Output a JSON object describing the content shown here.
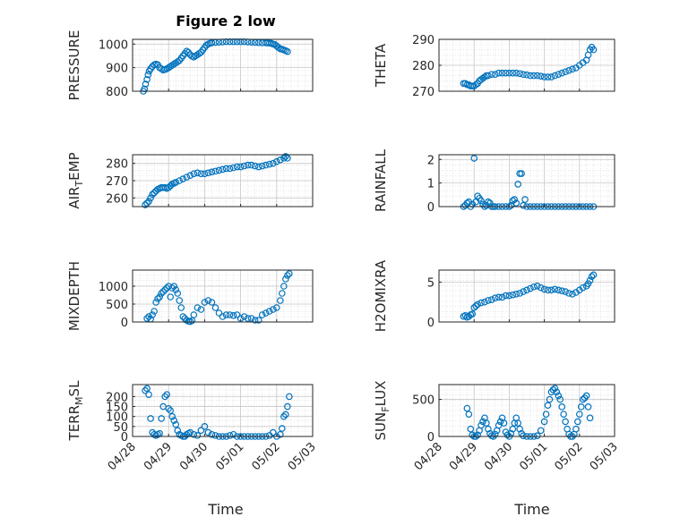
{
  "figure": {
    "title": "Figure 2 low",
    "xlabel": "Time",
    "xticks": [
      "04/28",
      "04/29",
      "04/30",
      "05/01",
      "05/02",
      "05/03"
    ],
    "marker_color": "#0072BD"
  },
  "chart_data": [
    {
      "type": "scatter",
      "name": "pressure",
      "ylabel": "PRESSURE",
      "ylim": [
        800,
        1020
      ],
      "yticks": [
        800,
        900,
        1000
      ],
      "ytick_labels": [
        "800",
        "900",
        "1000"
      ],
      "xlim": [
        0,
        5
      ],
      "grid": true,
      "x": [
        0.3,
        0.33,
        0.36,
        0.4,
        0.43,
        0.46,
        0.5,
        0.55,
        0.6,
        0.65,
        0.7,
        0.75,
        0.8,
        0.85,
        0.9,
        0.95,
        1.0,
        1.05,
        1.1,
        1.15,
        1.2,
        1.25,
        1.3,
        1.35,
        1.4,
        1.45,
        1.5,
        1.55,
        1.6,
        1.65,
        1.7,
        1.75,
        1.8,
        1.85,
        1.9,
        1.95,
        2.0,
        2.05,
        2.1,
        2.15,
        2.2,
        2.3,
        2.4,
        2.5,
        2.6,
        2.7,
        2.8,
        2.9,
        3.0,
        3.1,
        3.2,
        3.3,
        3.4,
        3.5,
        3.6,
        3.7,
        3.75,
        3.8,
        3.85,
        3.9,
        3.95,
        4.0,
        4.05,
        4.1,
        4.15,
        4.2,
        4.25,
        4.3
      ],
      "y": [
        800,
        810,
        830,
        850,
        870,
        885,
        895,
        905,
        912,
        915,
        912,
        900,
        895,
        890,
        892,
        895,
        900,
        905,
        910,
        915,
        920,
        925,
        930,
        940,
        950,
        960,
        970,
        965,
        955,
        948,
        945,
        950,
        955,
        960,
        965,
        975,
        985,
        995,
        1000,
        1003,
        1005,
        1007,
        1008,
        1009,
        1010,
        1010,
        1010,
        1010,
        1010,
        1010,
        1009,
        1008,
        1007,
        1006,
        1005,
        1005,
        1005,
        1004,
        1003,
        1000,
        998,
        992,
        985,
        980,
        978,
        975,
        972,
        968
      ]
    },
    {
      "type": "scatter",
      "name": "theta",
      "ylabel": "THETA",
      "ylim": [
        270,
        290
      ],
      "yticks": [
        270,
        280,
        290
      ],
      "ytick_labels": [
        "270",
        "280",
        "290"
      ],
      "xlim": [
        0,
        5
      ],
      "grid": true,
      "x": [
        0.7,
        0.75,
        0.8,
        0.85,
        0.9,
        0.95,
        1.0,
        1.05,
        1.1,
        1.15,
        1.2,
        1.25,
        1.3,
        1.35,
        1.4,
        1.5,
        1.6,
        1.7,
        1.8,
        1.9,
        2.0,
        2.1,
        2.2,
        2.3,
        2.4,
        2.5,
        2.6,
        2.7,
        2.8,
        2.9,
        3.0,
        3.1,
        3.2,
        3.3,
        3.4,
        3.5,
        3.6,
        3.7,
        3.8,
        3.9,
        4.0,
        4.1,
        4.2,
        4.25,
        4.3,
        4.35,
        4.4
      ],
      "y": [
        273,
        273,
        272.5,
        272.5,
        272,
        272,
        272,
        272.5,
        273,
        274,
        274.5,
        275,
        275.5,
        276,
        276,
        276.5,
        276.5,
        277,
        277,
        277,
        277,
        277,
        277,
        276.8,
        276.5,
        276.3,
        276,
        276,
        276,
        275.8,
        275.5,
        275.5,
        275.5,
        276,
        276.5,
        277,
        277.5,
        278,
        278.5,
        279,
        280,
        281,
        282,
        284,
        286,
        287,
        286
      ]
    },
    {
      "type": "scatter",
      "name": "air-temp",
      "ylabel_main": "AIR",
      "ylabel_sub": "T",
      "ylabel_rest": "EMP",
      "ylim": [
        255,
        285
      ],
      "yticks": [
        260,
        270,
        280
      ],
      "ytick_labels": [
        "260",
        "270",
        "280"
      ],
      "xlim": [
        0,
        5
      ],
      "grid": true,
      "x": [
        0.35,
        0.4,
        0.45,
        0.5,
        0.55,
        0.6,
        0.65,
        0.7,
        0.75,
        0.8,
        0.85,
        0.9,
        0.95,
        1.0,
        1.05,
        1.1,
        1.15,
        1.2,
        1.3,
        1.4,
        1.5,
        1.6,
        1.7,
        1.8,
        1.9,
        2.0,
        2.1,
        2.2,
        2.3,
        2.4,
        2.5,
        2.6,
        2.7,
        2.8,
        2.9,
        3.0,
        3.1,
        3.2,
        3.3,
        3.4,
        3.5,
        3.6,
        3.7,
        3.8,
        3.9,
        4.0,
        4.1,
        4.2,
        4.25,
        4.3
      ],
      "y": [
        256,
        257,
        258,
        260,
        262,
        263,
        264,
        265,
        265.5,
        266,
        266,
        266,
        265.5,
        266,
        267,
        268,
        268.5,
        269,
        270,
        271,
        272,
        273,
        274,
        274.5,
        274,
        274,
        274.5,
        275,
        275.5,
        276,
        276.5,
        277,
        277,
        277.5,
        278,
        278,
        278.5,
        279,
        279,
        278.5,
        278,
        278.5,
        279,
        279.5,
        280,
        281,
        282,
        283,
        284,
        283
      ]
    },
    {
      "type": "scatter",
      "name": "rainfall",
      "ylabel": "RAINFALL",
      "ylim": [
        0,
        2.2
      ],
      "yticks": [
        0,
        1,
        2
      ],
      "ytick_labels": [
        "0",
        "1",
        "2"
      ],
      "xlim": [
        0,
        5
      ],
      "grid": true,
      "x": [
        0.7,
        0.75,
        0.8,
        0.85,
        0.9,
        0.95,
        1.0,
        1.05,
        1.1,
        1.15,
        1.2,
        1.25,
        1.3,
        1.35,
        1.4,
        1.45,
        1.5,
        1.55,
        1.6,
        1.7,
        1.8,
        1.9,
        2.0,
        2.05,
        2.1,
        2.15,
        2.2,
        2.25,
        2.3,
        2.35,
        2.4,
        2.45,
        2.5,
        2.6,
        2.7,
        2.8,
        2.9,
        3.0,
        3.1,
        3.2,
        3.3,
        3.4,
        3.5,
        3.6,
        3.7,
        3.8,
        3.9,
        4.0,
        4.1,
        4.2,
        4.3,
        4.4
      ],
      "y": [
        0,
        0.05,
        0.15,
        0.2,
        0,
        0.1,
        2.05,
        0.2,
        0.45,
        0.35,
        0.25,
        0.1,
        0,
        0.05,
        0.2,
        0.15,
        0,
        0,
        0,
        0,
        0,
        0,
        0,
        0.05,
        0.25,
        0.3,
        0.15,
        0.95,
        1.4,
        1.4,
        0.05,
        0.3,
        0,
        0,
        0,
        0,
        0,
        0,
        0,
        0,
        0,
        0,
        0,
        0,
        0,
        0,
        0,
        0,
        0,
        0,
        0,
        0
      ]
    },
    {
      "type": "scatter",
      "name": "mixdepth",
      "ylabel": "MIXDEPTH",
      "ylim": [
        0,
        1450
      ],
      "yticks": [
        0,
        500,
        1000
      ],
      "ytick_labels": [
        "0",
        "500",
        "1000"
      ],
      "xlim": [
        0,
        5
      ],
      "grid": true,
      "x": [
        0.4,
        0.45,
        0.5,
        0.55,
        0.6,
        0.65,
        0.7,
        0.75,
        0.8,
        0.85,
        0.9,
        0.95,
        1.0,
        1.05,
        1.1,
        1.15,
        1.2,
        1.25,
        1.3,
        1.35,
        1.4,
        1.45,
        1.5,
        1.55,
        1.6,
        1.65,
        1.7,
        1.8,
        1.9,
        2.0,
        2.1,
        2.2,
        2.3,
        2.4,
        2.5,
        2.6,
        2.7,
        2.8,
        2.9,
        3.0,
        3.1,
        3.2,
        3.3,
        3.4,
        3.5,
        3.6,
        3.7,
        3.8,
        3.9,
        4.0,
        4.1,
        4.15,
        4.2,
        4.25,
        4.3,
        4.35
      ],
      "y": [
        100,
        150,
        80,
        200,
        300,
        550,
        650,
        700,
        800,
        850,
        900,
        950,
        1000,
        700,
        950,
        1000,
        900,
        800,
        600,
        400,
        150,
        100,
        50,
        20,
        10,
        40,
        200,
        400,
        350,
        550,
        600,
        550,
        400,
        250,
        150,
        200,
        200,
        180,
        200,
        100,
        150,
        100,
        100,
        50,
        50,
        200,
        250,
        300,
        350,
        400,
        600,
        800,
        1000,
        1200,
        1300,
        1350
      ]
    },
    {
      "type": "scatter",
      "name": "h2o-mixing-ratio",
      "ylabel": "H2OMIXRA",
      "ylim": [
        0,
        6.5
      ],
      "yticks": [
        0,
        5
      ],
      "ytick_labels": [
        "0",
        "5"
      ],
      "xlim": [
        0,
        5
      ],
      "grid": true,
      "x": [
        0.7,
        0.75,
        0.8,
        0.85,
        0.9,
        0.95,
        1.0,
        1.05,
        1.1,
        1.2,
        1.3,
        1.4,
        1.5,
        1.6,
        1.7,
        1.8,
        1.9,
        2.0,
        2.1,
        2.2,
        2.3,
        2.4,
        2.5,
        2.6,
        2.7,
        2.8,
        2.9,
        3.0,
        3.1,
        3.2,
        3.3,
        3.4,
        3.5,
        3.6,
        3.7,
        3.8,
        3.9,
        4.0,
        4.1,
        4.2,
        4.25,
        4.3,
        4.35,
        4.4
      ],
      "y": [
        0.7,
        0.8,
        0.6,
        0.7,
        0.9,
        1.0,
        1.8,
        2.0,
        2.2,
        2.4,
        2.5,
        2.7,
        2.8,
        3.0,
        3.1,
        3.1,
        3.3,
        3.3,
        3.4,
        3.5,
        3.6,
        3.8,
        4.0,
        4.2,
        4.4,
        4.5,
        4.3,
        4.1,
        4.0,
        4.0,
        4.1,
        4.0,
        3.9,
        3.8,
        3.6,
        3.5,
        3.7,
        4.0,
        4.3,
        4.5,
        4.8,
        5.2,
        5.7,
        5.9
      ]
    },
    {
      "type": "scatter",
      "name": "terrain-msl",
      "ylabel_main": "TERR",
      "ylabel_sub": "M",
      "ylabel_rest": "SL",
      "ylim": [
        0,
        260
      ],
      "yticks": [
        0,
        50,
        100,
        150,
        200
      ],
      "ytick_labels": [
        "0",
        "50",
        "100",
        "150",
        "200"
      ],
      "xlim": [
        0,
        5
      ],
      "grid": true,
      "x": [
        0.35,
        0.4,
        0.45,
        0.5,
        0.55,
        0.6,
        0.65,
        0.7,
        0.75,
        0.8,
        0.85,
        0.9,
        0.95,
        1.0,
        1.05,
        1.1,
        1.15,
        1.2,
        1.25,
        1.3,
        1.35,
        1.4,
        1.45,
        1.5,
        1.55,
        1.6,
        1.7,
        1.8,
        1.9,
        2.0,
        2.1,
        2.2,
        2.3,
        2.4,
        2.5,
        2.6,
        2.7,
        2.8,
        2.9,
        3.0,
        3.1,
        3.2,
        3.3,
        3.4,
        3.5,
        3.6,
        3.7,
        3.8,
        3.9,
        4.0,
        4.1,
        4.15,
        4.2,
        4.25,
        4.3,
        4.35
      ],
      "y": [
        230,
        240,
        210,
        90,
        20,
        10,
        5,
        10,
        15,
        90,
        150,
        200,
        210,
        140,
        130,
        100,
        80,
        60,
        30,
        10,
        5,
        0,
        0,
        10,
        15,
        20,
        10,
        5,
        30,
        50,
        20,
        10,
        5,
        0,
        0,
        0,
        5,
        10,
        0,
        0,
        0,
        0,
        0,
        0,
        0,
        0,
        0,
        5,
        20,
        0,
        10,
        40,
        100,
        110,
        150,
        200
      ]
    },
    {
      "type": "scatter",
      "name": "sun-flux",
      "ylabel_main": "SUN",
      "ylabel_sub": "F",
      "ylabel_rest": "LUX",
      "ylim": [
        0,
        700
      ],
      "yticks": [
        0,
        500
      ],
      "ytick_labels": [
        "0",
        "500"
      ],
      "xlim": [
        0,
        5
      ],
      "grid": true,
      "x": [
        0.8,
        0.85,
        0.9,
        0.95,
        1.0,
        1.05,
        1.1,
        1.15,
        1.2,
        1.25,
        1.3,
        1.35,
        1.4,
        1.45,
        1.5,
        1.55,
        1.6,
        1.65,
        1.7,
        1.75,
        1.8,
        1.85,
        1.9,
        1.95,
        2.0,
        2.05,
        2.1,
        2.15,
        2.2,
        2.25,
        2.3,
        2.35,
        2.4,
        2.5,
        2.6,
        2.7,
        2.8,
        2.9,
        3.0,
        3.05,
        3.1,
        3.15,
        3.2,
        3.25,
        3.3,
        3.35,
        3.4,
        3.45,
        3.5,
        3.55,
        3.6,
        3.65,
        3.7,
        3.75,
        3.8,
        3.85,
        3.9,
        3.95,
        4.0,
        4.05,
        4.1,
        4.15,
        4.2,
        4.25,
        4.3
      ],
      "y": [
        380,
        300,
        100,
        20,
        0,
        0,
        20,
        80,
        150,
        200,
        250,
        180,
        100,
        40,
        10,
        0,
        30,
        80,
        150,
        200,
        250,
        180,
        60,
        20,
        0,
        40,
        100,
        180,
        250,
        180,
        100,
        40,
        10,
        0,
        0,
        0,
        10,
        80,
        200,
        300,
        420,
        500,
        600,
        630,
        650,
        600,
        550,
        500,
        400,
        300,
        200,
        100,
        30,
        0,
        0,
        30,
        100,
        200,
        300,
        400,
        500,
        520,
        550,
        400,
        250
      ]
    }
  ]
}
